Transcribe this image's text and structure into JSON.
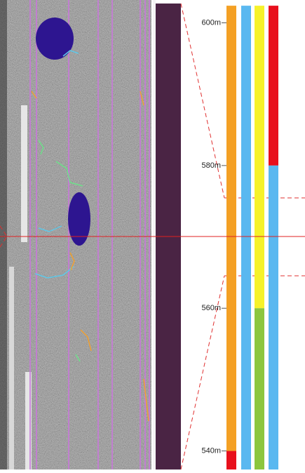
{
  "depth_axis": {
    "range": [
      603.2,
      537.4
    ],
    "ticks": [
      {
        "value": 600,
        "label": "600m"
      },
      {
        "value": 580,
        "label": "580m"
      },
      {
        "value": 560,
        "label": "560m"
      },
      {
        "value": 540,
        "label": "540m"
      }
    ]
  },
  "tracks": [
    [
      {
        "from": 602.4,
        "to": 540,
        "color": "#f4a024"
      },
      {
        "from": 540,
        "to": 537.4,
        "color": "#e8101c"
      }
    ],
    [
      {
        "from": 602.4,
        "to": 537.4,
        "color": "#5ab8f0"
      }
    ],
    [
      {
        "from": 602.4,
        "to": 560,
        "color": "#f6f22a"
      },
      {
        "from": 560,
        "to": 537.4,
        "color": "#8cc63e"
      }
    ],
    [
      {
        "from": 602.4,
        "to": 580,
        "color": "#e8101c"
      },
      {
        "from": 580,
        "to": 537.4,
        "color": "#5ab8f0"
      }
    ]
  ]
}
